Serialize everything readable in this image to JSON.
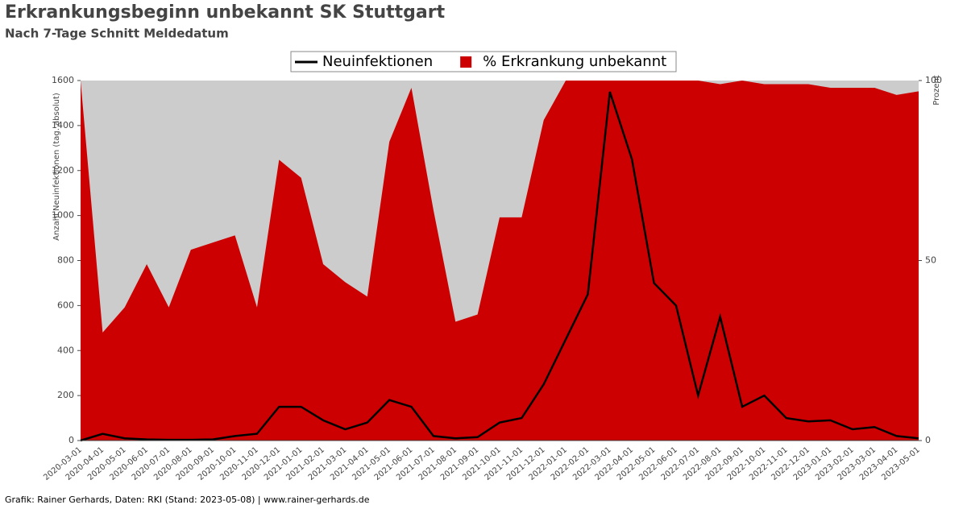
{
  "chart_data": {
    "type": "line",
    "title": "Erkrankungsbeginn unbekannt SK Stuttgart",
    "subtitle": "Nach 7-Tage Schnitt Meldedatum",
    "y_label": "Anzahl Neuinfektionen (tag. absolut)",
    "y2_label": "Prozent",
    "footer": "Grafik: Rainer Gerhards, Daten: RKI (Stand: 2023-05-08) | www.rainer-gerhards.de",
    "categories": [
      "2020-03-01",
      "2020-04-01",
      "2020-05-01",
      "2020-06-01",
      "2020-07-01",
      "2020-08-01",
      "2020-09-01",
      "2020-10-01",
      "2020-11-01",
      "2020-12-01",
      "2021-01-01",
      "2021-02-01",
      "2021-03-01",
      "2021-04-01",
      "2021-05-01",
      "2021-06-01",
      "2021-07-01",
      "2021-08-01",
      "2021-09-01",
      "2021-10-01",
      "2021-11-01",
      "2021-12-01",
      "2022-01-01",
      "2022-02-01",
      "2022-03-01",
      "2022-04-01",
      "2022-05-01",
      "2022-06-01",
      "2022-07-01",
      "2022-08-01",
      "2022-09-01",
      "2022-10-01",
      "2022-11-01",
      "2022-12-01",
      "2023-01-01",
      "2023-02-01",
      "2023-03-01",
      "2023-04-01",
      "2023-05-01"
    ],
    "series": [
      {
        "name": "% Erkrankung unbekannt",
        "color": "#cc0000",
        "style": "area",
        "axis": "y2",
        "values": [
          100,
          30,
          37,
          49,
          37,
          53,
          55,
          57,
          37,
          78,
          73,
          49,
          44,
          40,
          83,
          98,
          64,
          33,
          35,
          62,
          62,
          89,
          100,
          100,
          100,
          100,
          100,
          100,
          100,
          99,
          100,
          99,
          99,
          99,
          98,
          98,
          98,
          96,
          97
        ]
      },
      {
        "name": "Neuinfektionen",
        "color": "#000000",
        "style": "line",
        "values": [
          0,
          30,
          10,
          5,
          3,
          3,
          5,
          20,
          30,
          150,
          150,
          90,
          50,
          80,
          180,
          150,
          20,
          10,
          15,
          80,
          100,
          250,
          450,
          650,
          1550,
          1250,
          700,
          600,
          200,
          550,
          150,
          200,
          100,
          85,
          90,
          50,
          60,
          20,
          10
        ]
      }
    ],
    "ylim": [
      0,
      1600
    ],
    "yticks": [
      0,
      200,
      400,
      600,
      800,
      1000,
      1200,
      1400,
      1600
    ],
    "y2lim": [
      0,
      100
    ],
    "y2ticks": [
      0,
      50,
      100
    ],
    "plot_background": "#cccccc"
  }
}
